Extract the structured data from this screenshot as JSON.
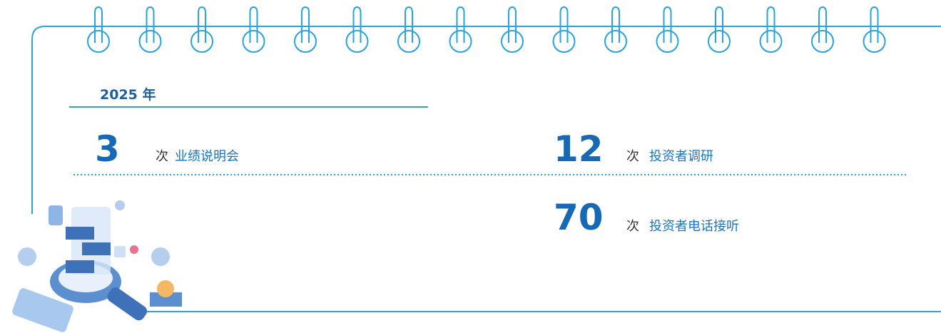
{
  "header": {
    "title": "2025 年"
  },
  "items": [
    {
      "value": 3,
      "unit": "次",
      "label": "业绩说明会"
    },
    {
      "value": 12,
      "unit": "次",
      "label": "投资者调研"
    },
    {
      "value": 70,
      "unit": "次",
      "label": "投资者电话接听"
    }
  ]
}
